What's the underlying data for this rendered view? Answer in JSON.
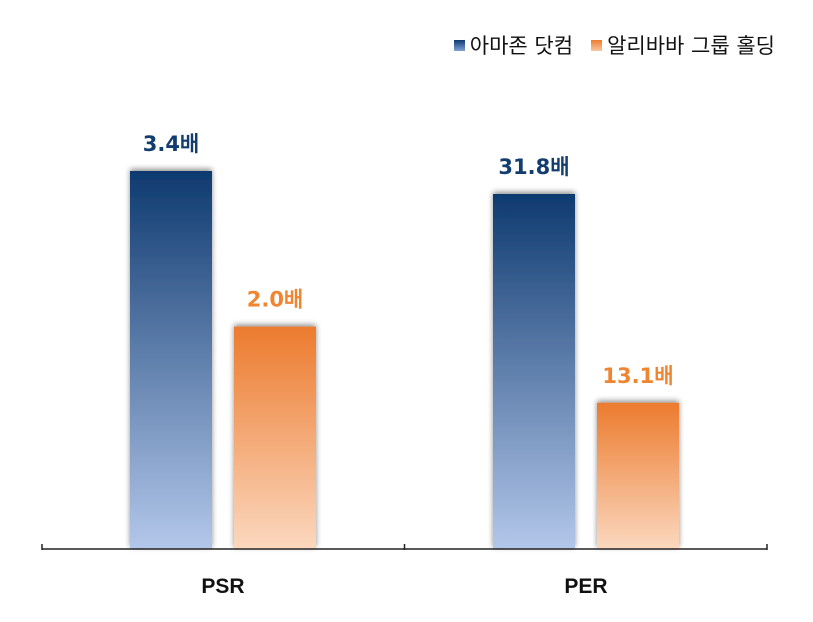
{
  "chart_data": {
    "type": "bar",
    "categories": [
      "PSR",
      "PER"
    ],
    "series": [
      {
        "name": "아마존 닷컴",
        "values": [
          3.4,
          31.8
        ],
        "labels": [
          "3.4배",
          "31.8배"
        ]
      },
      {
        "name": "알리바바 그룹 홀딩",
        "values": [
          2.0,
          13.1
        ],
        "labels": [
          "2.0배",
          "13.1배"
        ]
      }
    ],
    "colors": {
      "series0_top": "#0e3a70",
      "series0_bottom": "#b3c7ea",
      "series1_top": "#ec7b2e",
      "series1_bottom": "#fbd8bf",
      "label0": "#123d6e",
      "label1": "#ef8530"
    },
    "title": "",
    "xlabel": "",
    "ylabel": "",
    "legend": "top-right",
    "grid": false
  }
}
